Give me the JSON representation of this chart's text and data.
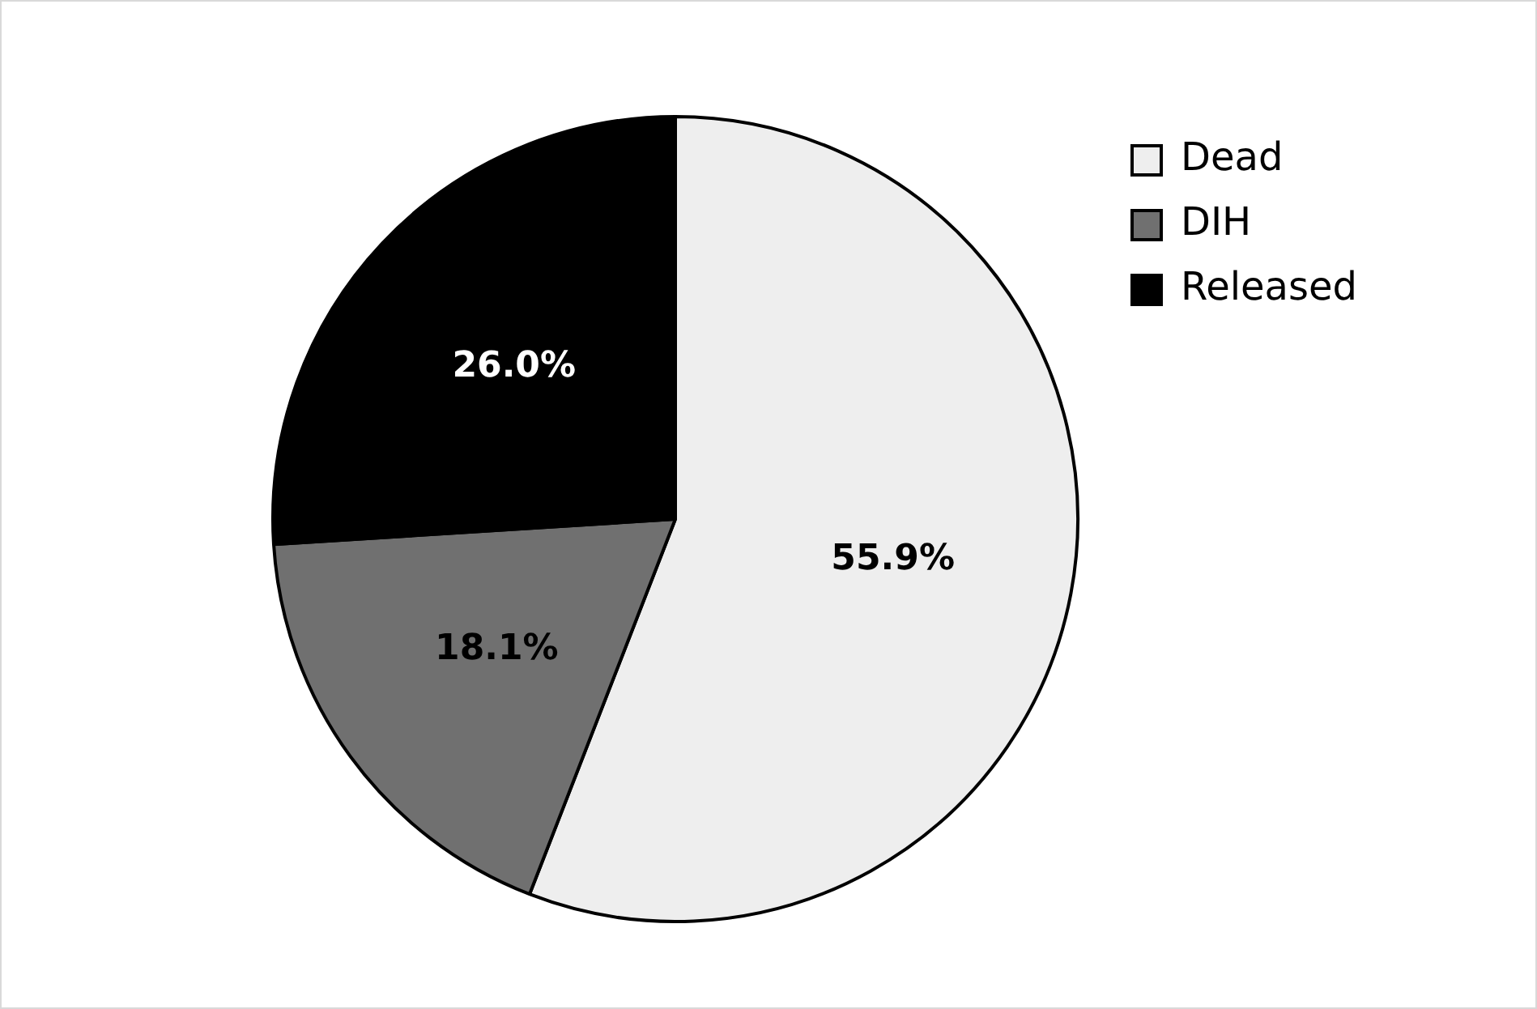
{
  "chart_data": {
    "type": "pie",
    "categories": [
      "Dead",
      "DIH",
      "Released"
    ],
    "values": [
      55.9,
      18.1,
      26.0
    ],
    "colors": [
      "#eeeeee",
      "#707070",
      "#000000"
    ],
    "value_labels": [
      "55.9%",
      "18.1%",
      "26.0%"
    ],
    "legend": "top right"
  }
}
